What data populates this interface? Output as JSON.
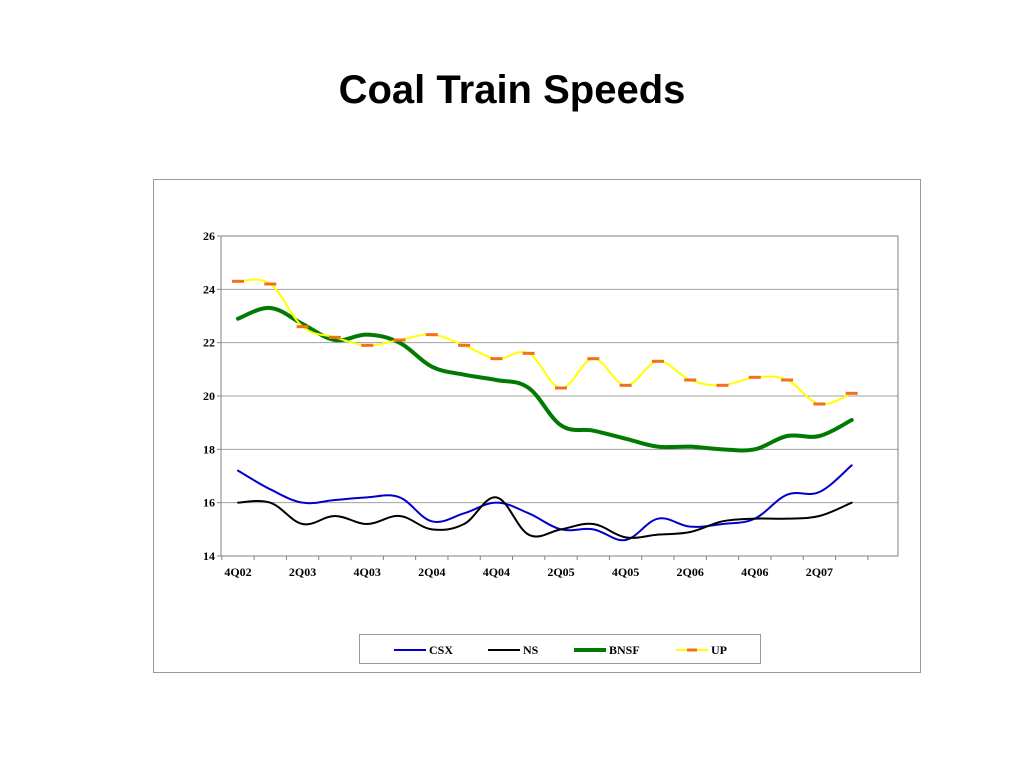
{
  "slide": {
    "title": "Coal Train Speeds"
  },
  "chart_data": {
    "type": "line",
    "title": "",
    "xlabel": "",
    "ylabel": "",
    "ylim": [
      14,
      26
    ],
    "yticks": [
      14,
      16,
      18,
      20,
      22,
      24,
      26
    ],
    "grid": true,
    "legend_position": "bottom",
    "x": [
      "4Q02",
      "1Q03",
      "2Q03",
      "3Q03",
      "4Q03",
      "1Q04",
      "2Q04",
      "3Q04",
      "4Q04",
      "1Q05",
      "2Q05",
      "3Q05",
      "4Q05",
      "1Q06",
      "2Q06",
      "3Q06",
      "4Q06",
      "1Q07",
      "2Q07",
      "3Q07"
    ],
    "xtick_labels": [
      "4Q02",
      "2Q03",
      "4Q03",
      "2Q04",
      "4Q04",
      "2Q05",
      "4Q05",
      "2Q06",
      "4Q06",
      "2Q07"
    ],
    "series": [
      {
        "name": "CSX",
        "color": "#0000cc",
        "width": 2,
        "values": [
          17.2,
          16.5,
          16.0,
          16.1,
          16.2,
          16.2,
          15.3,
          15.6,
          16.0,
          15.6,
          15.0,
          15.0,
          14.6,
          15.4,
          15.1,
          15.2,
          15.4,
          16.3,
          16.4,
          17.4
        ]
      },
      {
        "name": "NS",
        "color": "#000000",
        "width": 2,
        "values": [
          16.0,
          16.0,
          15.2,
          15.5,
          15.2,
          15.5,
          15.0,
          15.2,
          16.2,
          14.8,
          15.0,
          15.2,
          14.7,
          14.8,
          14.9,
          15.3,
          15.4,
          15.4,
          15.5,
          16.0
        ]
      },
      {
        "name": "BNSF",
        "color": "#007a00",
        "width": 4,
        "values": [
          22.9,
          23.3,
          22.7,
          22.1,
          22.3,
          22.0,
          21.1,
          20.8,
          20.6,
          20.3,
          18.9,
          18.7,
          18.4,
          18.1,
          18.1,
          18.0,
          18.0,
          18.5,
          18.5,
          19.1
        ]
      },
      {
        "name": "UP",
        "color": "#ffff00",
        "marker_color": "#f07020",
        "width": 2,
        "values": [
          24.3,
          24.2,
          22.6,
          22.2,
          21.9,
          22.1,
          22.3,
          21.9,
          21.4,
          21.6,
          20.3,
          21.4,
          20.4,
          21.3,
          20.6,
          20.4,
          20.7,
          20.6,
          19.7,
          20.1
        ]
      }
    ]
  }
}
